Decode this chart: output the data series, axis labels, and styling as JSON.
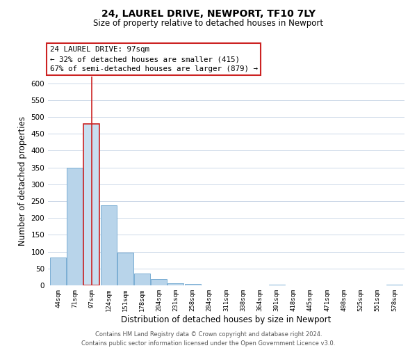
{
  "title": "24, LAUREL DRIVE, NEWPORT, TF10 7LY",
  "subtitle": "Size of property relative to detached houses in Newport",
  "xlabel": "Distribution of detached houses by size in Newport",
  "ylabel": "Number of detached properties",
  "bin_labels": [
    "44sqm",
    "71sqm",
    "97sqm",
    "124sqm",
    "151sqm",
    "178sqm",
    "204sqm",
    "231sqm",
    "258sqm",
    "284sqm",
    "311sqm",
    "338sqm",
    "364sqm",
    "391sqm",
    "418sqm",
    "445sqm",
    "471sqm",
    "498sqm",
    "525sqm",
    "551sqm",
    "578sqm"
  ],
  "bar_values": [
    83,
    350,
    480,
    237,
    97,
    35,
    18,
    7,
    5,
    0,
    0,
    0,
    0,
    3,
    0,
    0,
    0,
    0,
    0,
    0,
    3
  ],
  "bar_color": "#b8d4ea",
  "bar_edge_color": "#7aaed4",
  "highlight_bar_index": 2,
  "highlight_color": "#c8dff0",
  "highlight_edge_color": "#cc2222",
  "vline_color": "#cc2222",
  "ylim": [
    0,
    620
  ],
  "yticks": [
    0,
    50,
    100,
    150,
    200,
    250,
    300,
    350,
    400,
    450,
    500,
    550,
    600
  ],
  "annotation_title": "24 LAUREL DRIVE: 97sqm",
  "annotation_line1": "← 32% of detached houses are smaller (415)",
  "annotation_line2": "67% of semi-detached houses are larger (879) →",
  "footer_line1": "Contains HM Land Registry data © Crown copyright and database right 2024.",
  "footer_line2": "Contains public sector information licensed under the Open Government Licence v3.0.",
  "background_color": "#ffffff",
  "grid_color": "#ccd8e8"
}
